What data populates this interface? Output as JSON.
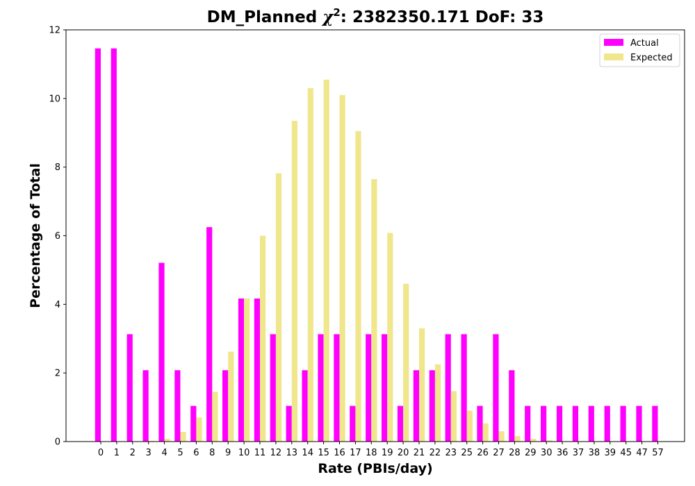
{
  "chart_data": {
    "type": "bar",
    "title": {
      "prefix": "DM_Planned ",
      "chi": "χ",
      "sup": "2",
      "suffix": ": 2382350.171 DoF: 33"
    },
    "xlabel": "Rate (PBIs/day)",
    "ylabel": "Percentage of Total",
    "ylim": [
      0,
      12
    ],
    "yticks": [
      0,
      2,
      4,
      6,
      8,
      10,
      12
    ],
    "legend_position": "top-right",
    "categories": [
      "0",
      "1",
      "2",
      "3",
      "4",
      "5",
      "6",
      "8",
      "9",
      "10",
      "11",
      "12",
      "13",
      "14",
      "15",
      "16",
      "17",
      "18",
      "19",
      "20",
      "21",
      "22",
      "23",
      "25",
      "26",
      "27",
      "28",
      "29",
      "30",
      "36",
      "37",
      "38",
      "39",
      "45",
      "47",
      "57"
    ],
    "series": [
      {
        "name": "Actual",
        "color": "#ff00ff",
        "values": [
          11.46,
          11.46,
          3.13,
          2.08,
          5.21,
          2.08,
          1.04,
          6.25,
          2.08,
          4.17,
          4.17,
          3.13,
          1.04,
          2.08,
          3.13,
          3.13,
          1.04,
          3.13,
          3.13,
          1.04,
          2.08,
          2.08,
          3.13,
          3.13,
          1.04,
          3.13,
          2.08,
          1.04,
          1.04,
          1.04,
          1.04,
          1.04,
          1.04,
          1.04,
          1.04,
          1.04
        ]
      },
      {
        "name": "Expected",
        "color": "#f0e68c",
        "values": [
          0.0,
          0.0,
          0.0,
          0.02,
          0.08,
          0.28,
          0.7,
          1.45,
          2.62,
          4.17,
          6.0,
          7.82,
          9.35,
          10.3,
          10.55,
          10.1,
          9.05,
          7.65,
          6.08,
          4.6,
          3.3,
          2.25,
          1.47,
          0.9,
          0.53,
          0.3,
          0.16,
          0.08,
          0.04,
          0.0,
          0.0,
          0.0,
          0.0,
          0.0,
          0.0,
          0.0
        ]
      }
    ]
  }
}
